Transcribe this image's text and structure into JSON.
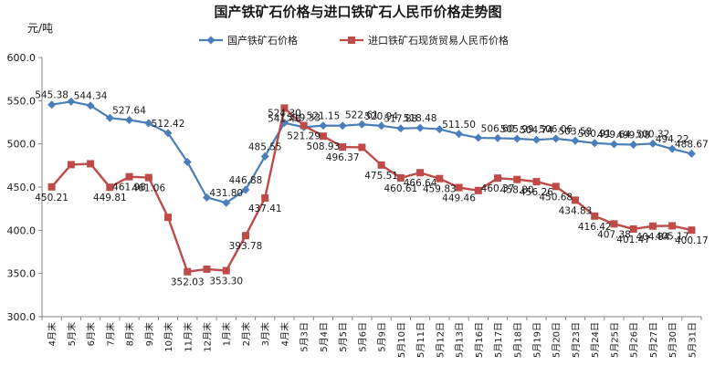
{
  "chart_data": {
    "type": "line",
    "title": "国产铁矿石价格与进口铁矿石人民币价格走势图",
    "ylabel": "元/吨",
    "ylim": [
      300,
      600
    ],
    "yticks": [
      "300.0",
      "350.0",
      "400.0",
      "450.0",
      "500.0",
      "550.0",
      "600.0"
    ],
    "legend_position": "top",
    "grid": false,
    "categories": [
      "4月末",
      "5月末",
      "6月末",
      "7月末",
      "8月末",
      "9月末",
      "10月末",
      "11月末",
      "12月末",
      "1月末",
      "2月末",
      "3月末",
      "4月末",
      "5月3日",
      "5月4日",
      "5月5日",
      "5月6日",
      "5月9日",
      "5月10日",
      "5月11日",
      "5月12日",
      "5月13日",
      "5月16日",
      "5月17日",
      "5月18日",
      "5月19日",
      "5月20日",
      "5月23日",
      "5月24日",
      "5月25日",
      "5月26日",
      "5月27日",
      "5月30日",
      "5月31日"
    ],
    "series": [
      {
        "name": "国产铁矿石价格",
        "color": "#4a7ebb",
        "marker": "diamond",
        "values": [
          545.38,
          549.0,
          544.34,
          530.0,
          527.64,
          524.0,
          512.42,
          479.0,
          438.0,
          431.8,
          446.88,
          485.55,
          524.3,
          519.33,
          521.15,
          521.0,
          522.61,
          520.94,
          517.88,
          518.48,
          517.0,
          511.5,
          507.0,
          506.6,
          505.99,
          504.74,
          506.06,
          503.58,
          500.91,
          499.64,
          499.08,
          500.32,
          494.22,
          488.67
        ],
        "labels": [
          "545.38",
          "",
          "544.34",
          "",
          "527.64",
          "",
          "512.42",
          "",
          "",
          "431.80",
          "446.88",
          "485.55",
          "524.30",
          "519.33",
          "521.15",
          "",
          "522.61",
          "520.94",
          "517.88",
          "518.48",
          "",
          "511.50",
          "",
          "506.60",
          "505.99",
          "504.74",
          "506.06",
          "503.58",
          "500.91",
          "499.64",
          "499.08",
          "500.32",
          "494.22",
          "488.67"
        ]
      },
      {
        "name": "进口铁矿石现货贸易人民币价格",
        "color": "#be4b48",
        "marker": "square",
        "values": [
          450.21,
          476.0,
          477.0,
          449.81,
          461.98,
          461.06,
          415.0,
          352.03,
          355.0,
          353.3,
          393.78,
          437.41,
          541.48,
          521.29,
          508.93,
          496.37,
          496.0,
          475.51,
          460.61,
          466.64,
          459.83,
          449.46,
          446.0,
          460.37,
          458.8,
          456.26,
          450.68,
          434.83,
          416.42,
          407.38,
          401.47,
          404.84,
          405.17,
          400.17
        ],
        "labels": [
          "450.21",
          "",
          "",
          "449.81",
          "461.98",
          "461.06",
          "",
          "352.03",
          "",
          "353.30",
          "393.78",
          "437.41",
          "541.48",
          "521.29",
          "508.93",
          "496.37",
          "",
          "475.51",
          "460.61",
          "466.64",
          "459.83",
          "449.46",
          "",
          "460.37",
          "458.80",
          "456.26",
          "450.68",
          "434.83",
          "416.42",
          "407.38",
          "401.47",
          "404.84",
          "405.17",
          "400.17"
        ]
      }
    ]
  }
}
